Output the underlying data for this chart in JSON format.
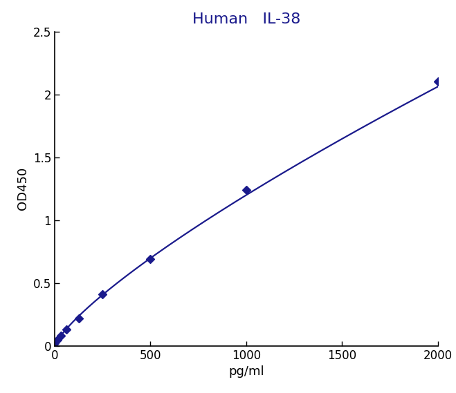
{
  "title": "Human   IL-38",
  "xlabel": "pg/ml",
  "ylabel": "OD450",
  "x_data": [
    0,
    15.625,
    31.25,
    62.5,
    125,
    250,
    500,
    1000,
    2000
  ],
  "y_data": [
    0.02,
    0.05,
    0.08,
    0.13,
    0.22,
    0.41,
    0.69,
    1.24,
    2.1
  ],
  "xlim": [
    0,
    2000
  ],
  "ylim": [
    0,
    2.5
  ],
  "xticks": [
    0,
    500,
    1000,
    1500,
    2000
  ],
  "yticks": [
    0,
    0.5,
    1.0,
    1.5,
    2.0,
    2.5
  ],
  "line_color": "#1a1a8c",
  "marker_color": "#1a1a8c",
  "title_color": "#1a1a8c",
  "marker_style": "D",
  "marker_size": 6,
  "line_width": 1.6,
  "title_fontsize": 16,
  "label_fontsize": 13,
  "tick_fontsize": 12,
  "background_color": "#ffffff",
  "fig_width": 6.59,
  "fig_height": 5.69,
  "dpi": 100
}
